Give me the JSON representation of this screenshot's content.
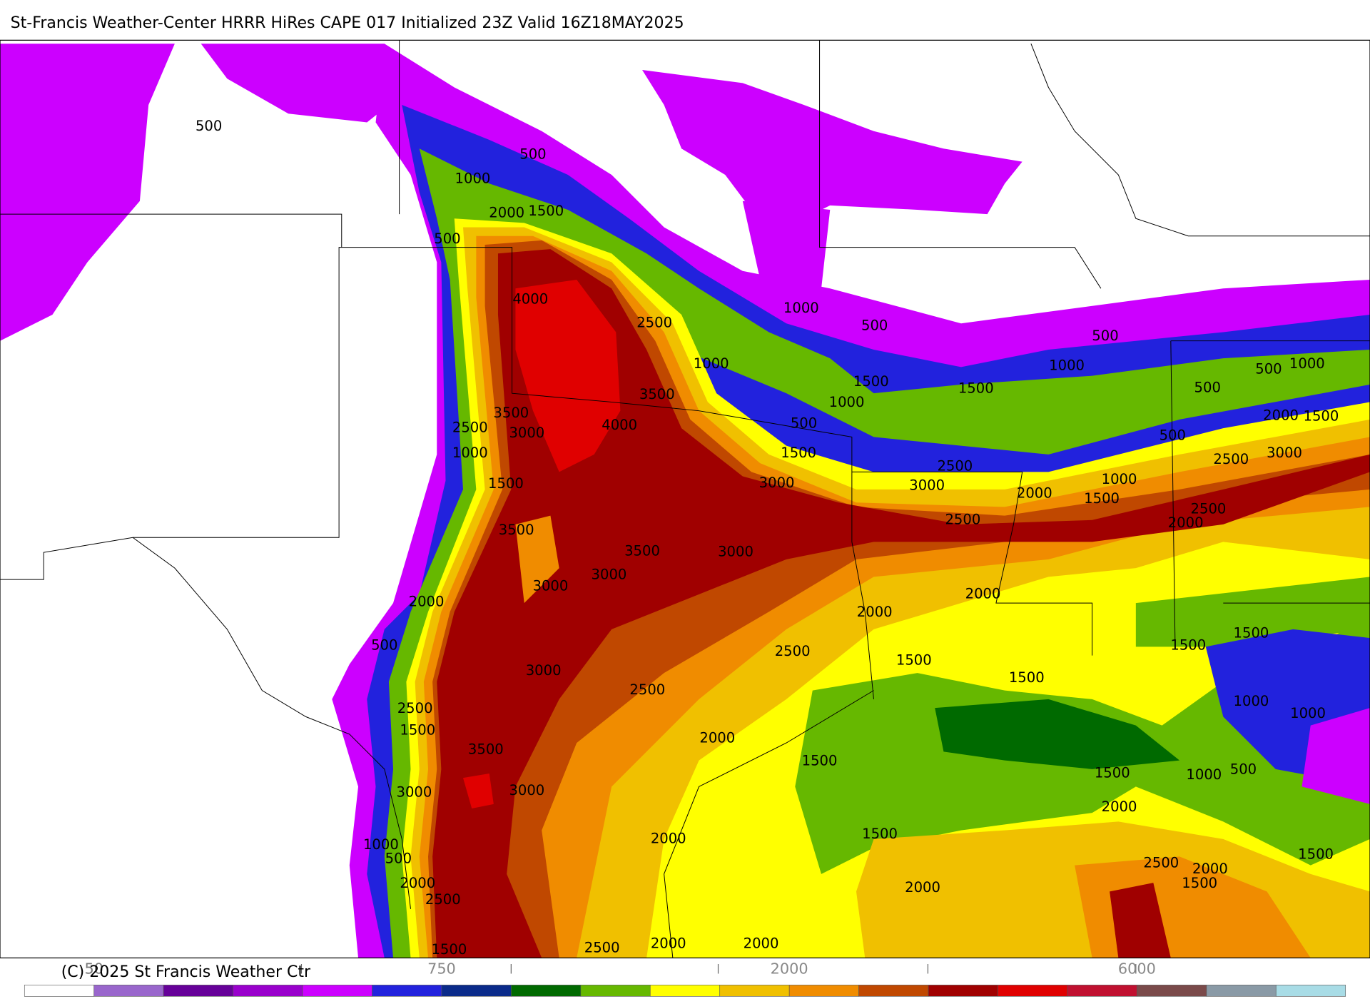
{
  "header": {
    "title": "St-Francis Weather-Center HRRR HiRes CAPE  017 Initialized  23Z Valid 16Z18MAY2025"
  },
  "contour_labels": [
    "500",
    "500",
    "1000",
    "2000",
    "1500",
    "500",
    "4000",
    "2500",
    "1000",
    "500",
    "500",
    "1000",
    "1000",
    "500",
    "1000",
    "1500",
    "1500",
    "500",
    "1000",
    "3500",
    "3500",
    "4000",
    "500",
    "2000",
    "1500",
    "2500",
    "3000",
    "1000",
    "1500",
    "500",
    "3000",
    "2500",
    "2500",
    "3000",
    "3000",
    "1000",
    "1500",
    "2000",
    "1500",
    "2500",
    "2500",
    "2000",
    "3500",
    "3500",
    "3000",
    "3000",
    "3000",
    "2000",
    "2000",
    "2000",
    "500",
    "1500",
    "1500",
    "2500",
    "1500",
    "1500",
    "3000",
    "2500",
    "1000",
    "1000",
    "2500",
    "1500",
    "2000",
    "3500",
    "1500",
    "1500",
    "1000",
    "500",
    "3000",
    "3000",
    "2000",
    "2000",
    "1500",
    "1000",
    "500",
    "1500",
    "2500",
    "2000",
    "1500",
    "2000",
    "2500",
    "2000",
    "2000",
    "2000",
    "2500",
    "1500"
  ],
  "colorbar": {
    "colors": [
      "#ffffff",
      "#9966cc",
      "#660099",
      "#9900cc",
      "#cc00ff",
      "#2222dd",
      "#0a2a8a",
      "#006a00",
      "#66b800",
      "#ffff00",
      "#f0c000",
      "#f08c00",
      "#c04800",
      "#a00000",
      "#e00000",
      "#c01030",
      "#7a4a4a",
      "#8a9aa6",
      "#a8dce6"
    ],
    "labels": [
      "50",
      "750",
      "2000",
      "6000"
    ]
  },
  "footer": {
    "copyright": "(C) 2025 St Francis Weather Ctr"
  }
}
